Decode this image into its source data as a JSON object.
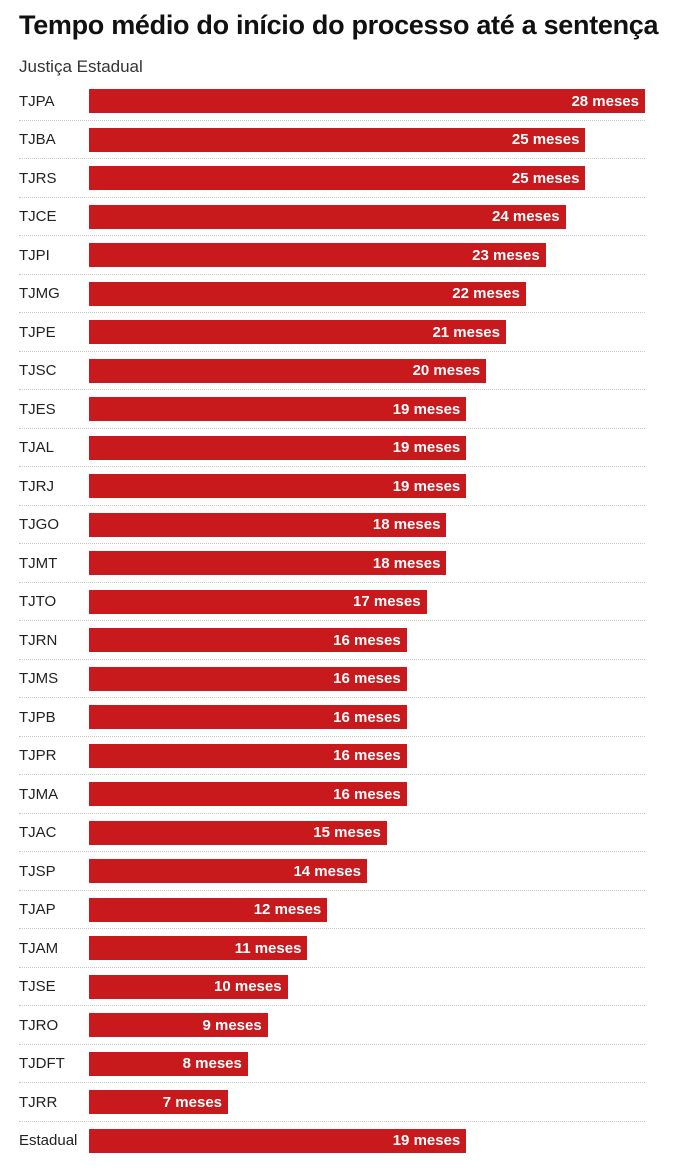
{
  "title": "Tempo médio do início do processo até a sentença",
  "subtitle": "Justiça Estadual",
  "colors": {
    "bar": "#c8191d",
    "bar_text": "#ffffff"
  },
  "chart_data": {
    "type": "bar",
    "orientation": "horizontal",
    "title": "Tempo médio do início do processo até a sentença",
    "subtitle": "Justiça Estadual",
    "unit": "meses",
    "xlim": [
      0,
      28
    ],
    "grid": false,
    "legend": "none",
    "categories": [
      "TJPA",
      "TJBA",
      "TJRS",
      "TJCE",
      "TJPI",
      "TJMG",
      "TJPE",
      "TJSC",
      "TJES",
      "TJAL",
      "TJRJ",
      "TJGO",
      "TJMT",
      "TJTO",
      "TJRN",
      "TJMS",
      "TJPB",
      "TJPR",
      "TJMA",
      "TJAC",
      "TJSP",
      "TJAP",
      "TJAM",
      "TJSE",
      "TJRO",
      "TJDFT",
      "TJRR",
      "Estadual"
    ],
    "values": [
      28,
      25,
      25,
      24,
      23,
      22,
      21,
      20,
      19,
      19,
      19,
      18,
      18,
      17,
      16,
      16,
      16,
      16,
      16,
      15,
      14,
      12,
      11,
      10,
      9,
      8,
      7,
      19
    ],
    "data_labels": [
      "28 meses",
      "25 meses",
      "25 meses",
      "24 meses",
      "23 meses",
      "22 meses",
      "21 meses",
      "20 meses",
      "19 meses",
      "19 meses",
      "19 meses",
      "18 meses",
      "18 meses",
      "17 meses",
      "16 meses",
      "16 meses",
      "16 meses",
      "16 meses",
      "16 meses",
      "15 meses",
      "14 meses",
      "12 meses",
      "11 meses",
      "10 meses",
      "9 meses",
      "8 meses",
      "7 meses",
      "19 meses"
    ]
  }
}
